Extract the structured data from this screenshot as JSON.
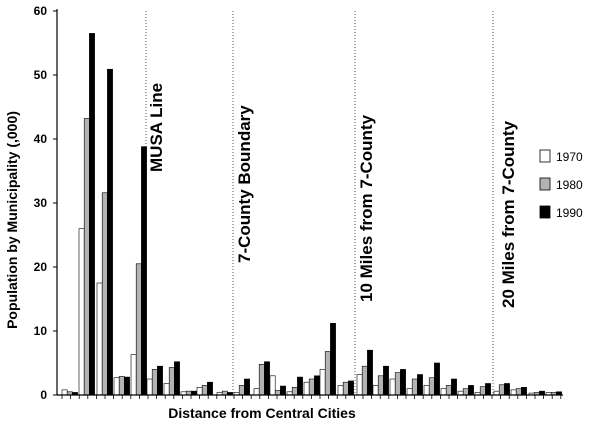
{
  "chart_data": {
    "type": "bar",
    "title": "",
    "xlabel": "Distance from Central Cities",
    "ylabel": "Population by Municipality (,000)",
    "ylim": [
      0,
      60
    ],
    "yticks": [
      "0",
      "10",
      "20",
      "30",
      "40",
      "50",
      "60"
    ],
    "legend_position": "right",
    "grid": false,
    "series": [
      {
        "name": "1970",
        "color": "#ffffff",
        "values": [
          0.8,
          26,
          17.5,
          2.7,
          6.3,
          2.5,
          1.8,
          0.5,
          1.2,
          0.4,
          0.4,
          1,
          3,
          0.5,
          2,
          4,
          1.5,
          3.2,
          1.5,
          2.5,
          1,
          1.5,
          1,
          0.6,
          0.4,
          0.6,
          0.8,
          0.3,
          0.4
        ]
      },
      {
        "name": "1980",
        "color": "#b3b3b3",
        "values": [
          0.5,
          43.2,
          31.6,
          2.9,
          20.5,
          4,
          4.3,
          0.6,
          1.5,
          0.6,
          1.5,
          4.8,
          0.7,
          1.2,
          2.5,
          6.8,
          2,
          4.5,
          3,
          3.5,
          2.5,
          2.7,
          1.5,
          1,
          1.3,
          1.6,
          1,
          0.4,
          0.4
        ]
      },
      {
        "name": "1990",
        "color": "#000000",
        "values": [
          0.4,
          56.5,
          50.9,
          2.8,
          38.8,
          4.5,
          5.2,
          0.6,
          2,
          0.4,
          2.5,
          5.2,
          1.4,
          2.8,
          3,
          11.2,
          2.2,
          7,
          4.5,
          4,
          3.2,
          5,
          2.5,
          1.5,
          1.8,
          1.8,
          1.2,
          0.6,
          0.5
        ]
      }
    ],
    "annotations": [
      {
        "text": "MUSA Line"
      },
      {
        "text": "7-County Boundary"
      },
      {
        "text": "10 Miles from 7-County"
      },
      {
        "text": "20 Miles from 7-County"
      }
    ]
  }
}
